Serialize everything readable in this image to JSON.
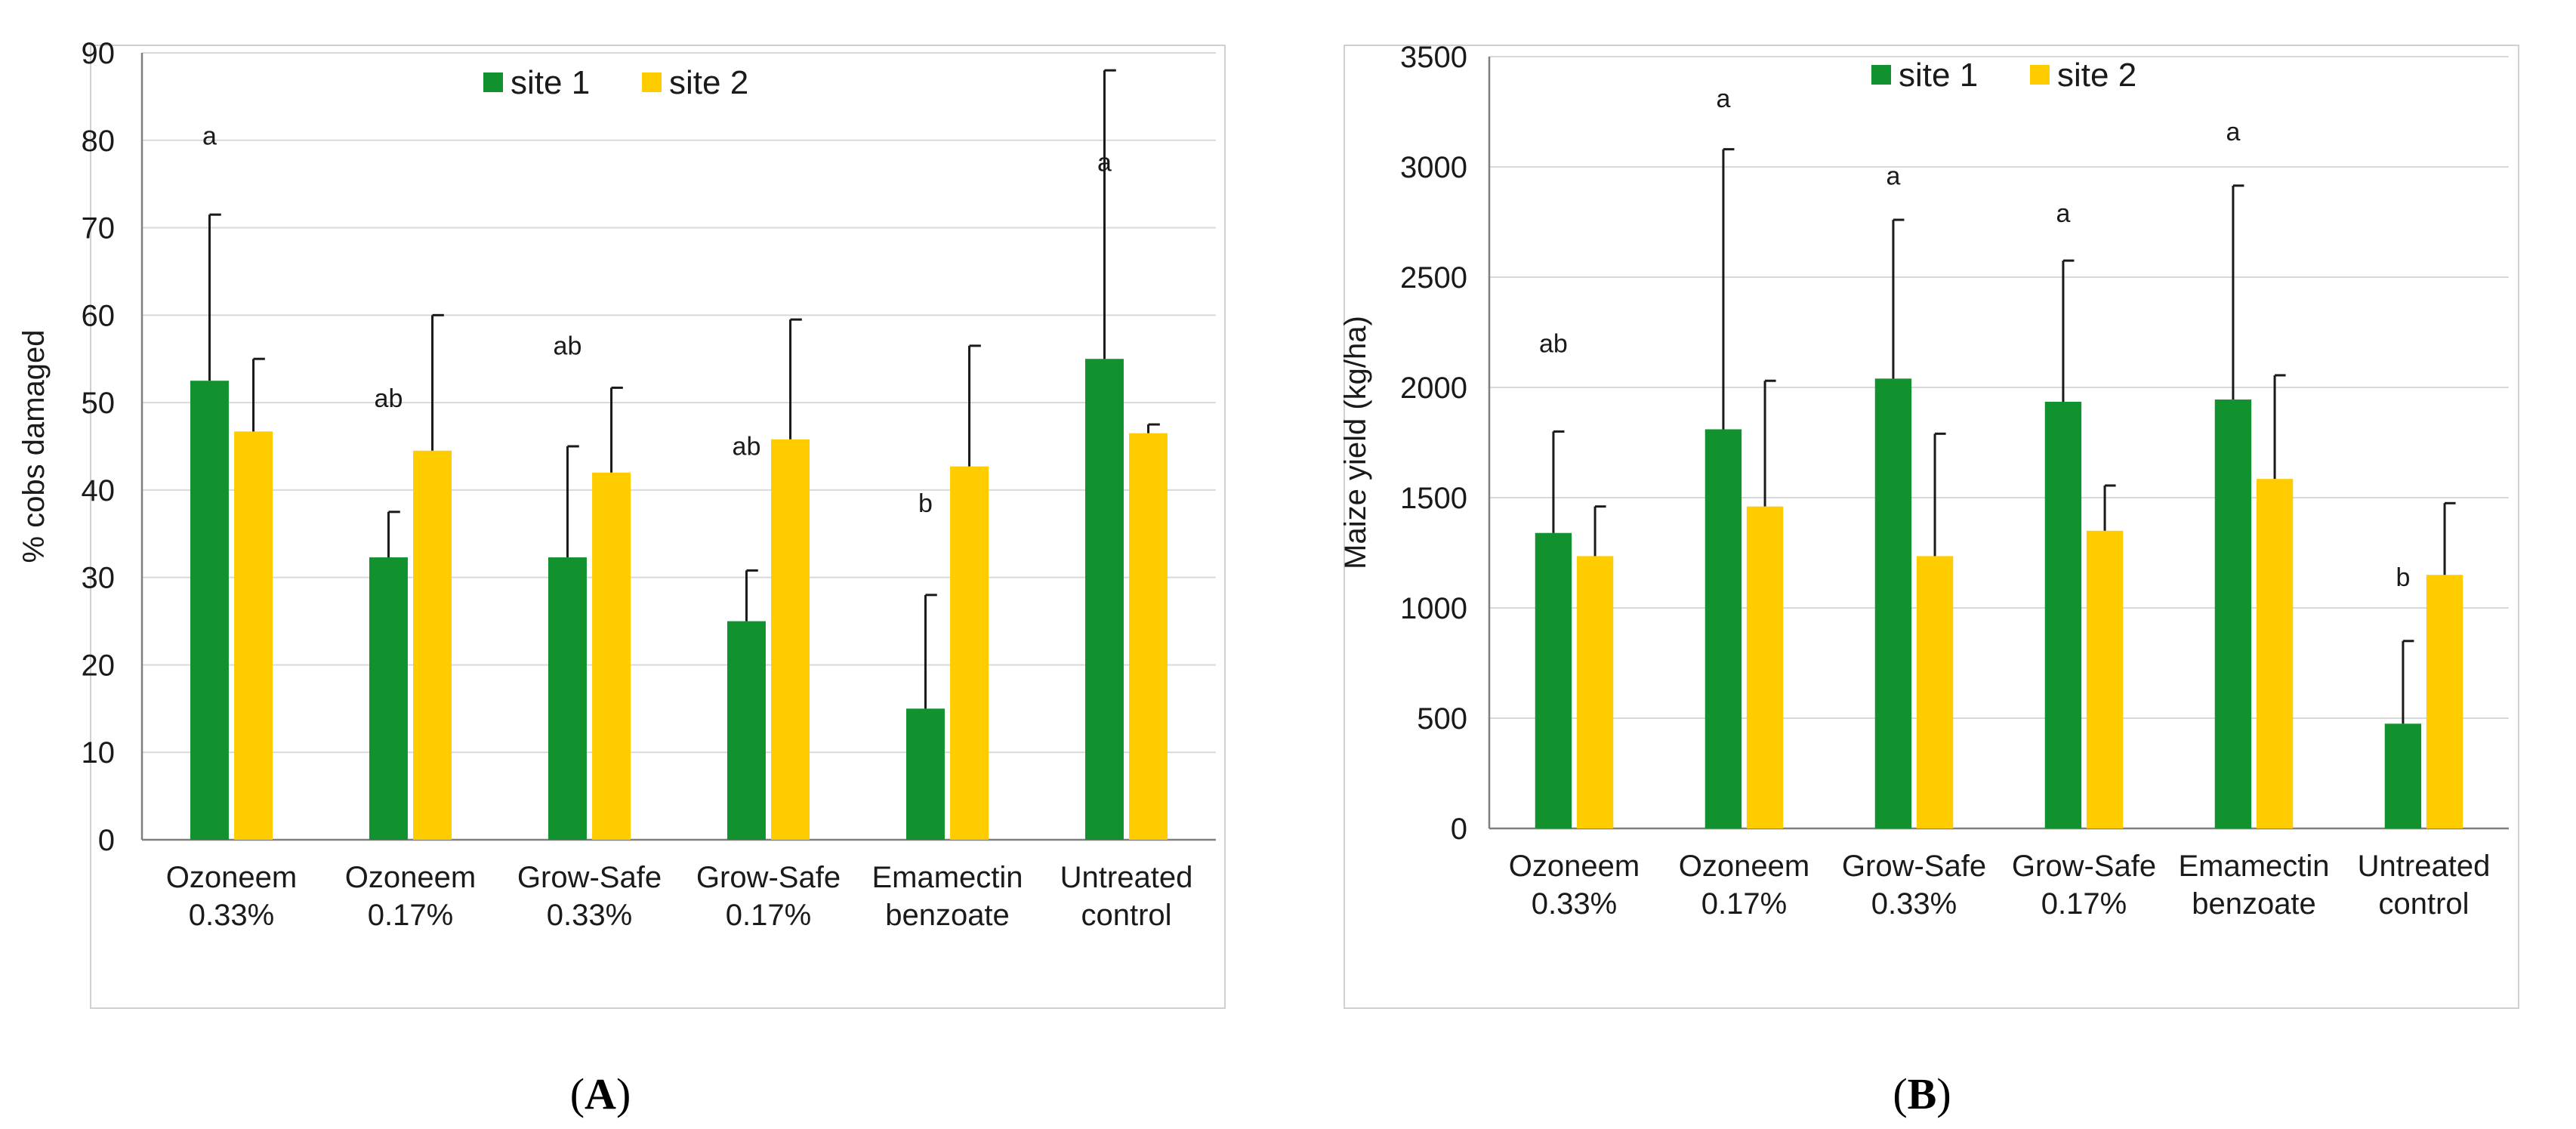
{
  "chart_data": [
    {
      "type": "bar",
      "panel_label": "A",
      "title": "",
      "xlabel": "",
      "ylabel": "% cobs damaged",
      "ylim": [
        0,
        90
      ],
      "yticks": [
        "0",
        "10",
        "20",
        "30",
        "40",
        "50",
        "60",
        "70",
        "80",
        "90"
      ],
      "categories": [
        [
          "Ozoneem",
          "0.33%"
        ],
        [
          "Ozoneem",
          "0.17%"
        ],
        [
          "Grow-Safe",
          "0.33%"
        ],
        [
          "Grow-Safe",
          "0.17%"
        ],
        [
          "Emamectin",
          "benzoate"
        ],
        [
          "Untreated",
          "control"
        ]
      ],
      "legend": [
        "site 1",
        "site 2"
      ],
      "legend_position": "top-center",
      "grid": true,
      "series": [
        {
          "name": "site 1",
          "color": "#12922e",
          "values": [
            52.5,
            32.3,
            32.3,
            25,
            15,
            55
          ],
          "err": [
            19,
            5.2,
            12.7,
            5.8,
            13,
            33
          ]
        },
        {
          "name": "site 2",
          "color": "#ffcc00",
          "values": [
            46.7,
            44.5,
            42,
            45.8,
            42.7,
            46.5
          ],
          "err": [
            8.3,
            15.5,
            9.7,
            13.7,
            13.8,
            1
          ]
        }
      ],
      "significance": [
        {
          "label": "a",
          "category": 0,
          "at": 79.5
        },
        {
          "label": "ab",
          "category": 1,
          "at": 49.5
        },
        {
          "label": "ab",
          "category": 2,
          "at": 55.5
        },
        {
          "label": "ab",
          "category": 3,
          "at": 44
        },
        {
          "label": "b",
          "category": 4,
          "at": 37.5
        },
        {
          "label": "a",
          "category": 5,
          "at": 76.5
        }
      ]
    },
    {
      "type": "bar",
      "panel_label": "B",
      "title": "",
      "xlabel": "",
      "ylabel": "Maize yield (kg/ha)",
      "ylim": [
        0,
        3500
      ],
      "yticks": [
        "0",
        "500",
        "1000",
        "1500",
        "2000",
        "2500",
        "3000",
        "3500"
      ],
      "categories": [
        [
          "Ozoneem",
          "0.33%"
        ],
        [
          "Ozoneem",
          "0.17%"
        ],
        [
          "Grow-Safe",
          "0.33%"
        ],
        [
          "Grow-Safe",
          "0.17%"
        ],
        [
          "Emamectin",
          "benzoate"
        ],
        [
          "Untreated",
          "control"
        ]
      ],
      "legend": [
        "site 1",
        "site 2"
      ],
      "legend_position": "top-center",
      "grid": true,
      "series": [
        {
          "name": "site 1",
          "color": "#12922e",
          "values": [
            1340,
            1810,
            2040,
            1935,
            1945,
            475
          ],
          "err": [
            460,
            1270,
            720,
            640,
            970,
            375
          ]
        },
        {
          "name": "site 2",
          "color": "#ffcc00",
          "values": [
            1235,
            1460,
            1235,
            1350,
            1585,
            1150
          ],
          "err": [
            225,
            570,
            555,
            205,
            470,
            325
          ]
        }
      ],
      "significance": [
        {
          "label": "ab",
          "category": 0,
          "at": 2160
        },
        {
          "label": "a",
          "category": 1,
          "at": 3270
        },
        {
          "label": "a",
          "category": 2,
          "at": 2920
        },
        {
          "label": "a",
          "category": 3,
          "at": 2750
        },
        {
          "label": "a",
          "category": 4,
          "at": 3120
        },
        {
          "label": "b",
          "category": 5,
          "at": 1100
        }
      ]
    }
  ]
}
